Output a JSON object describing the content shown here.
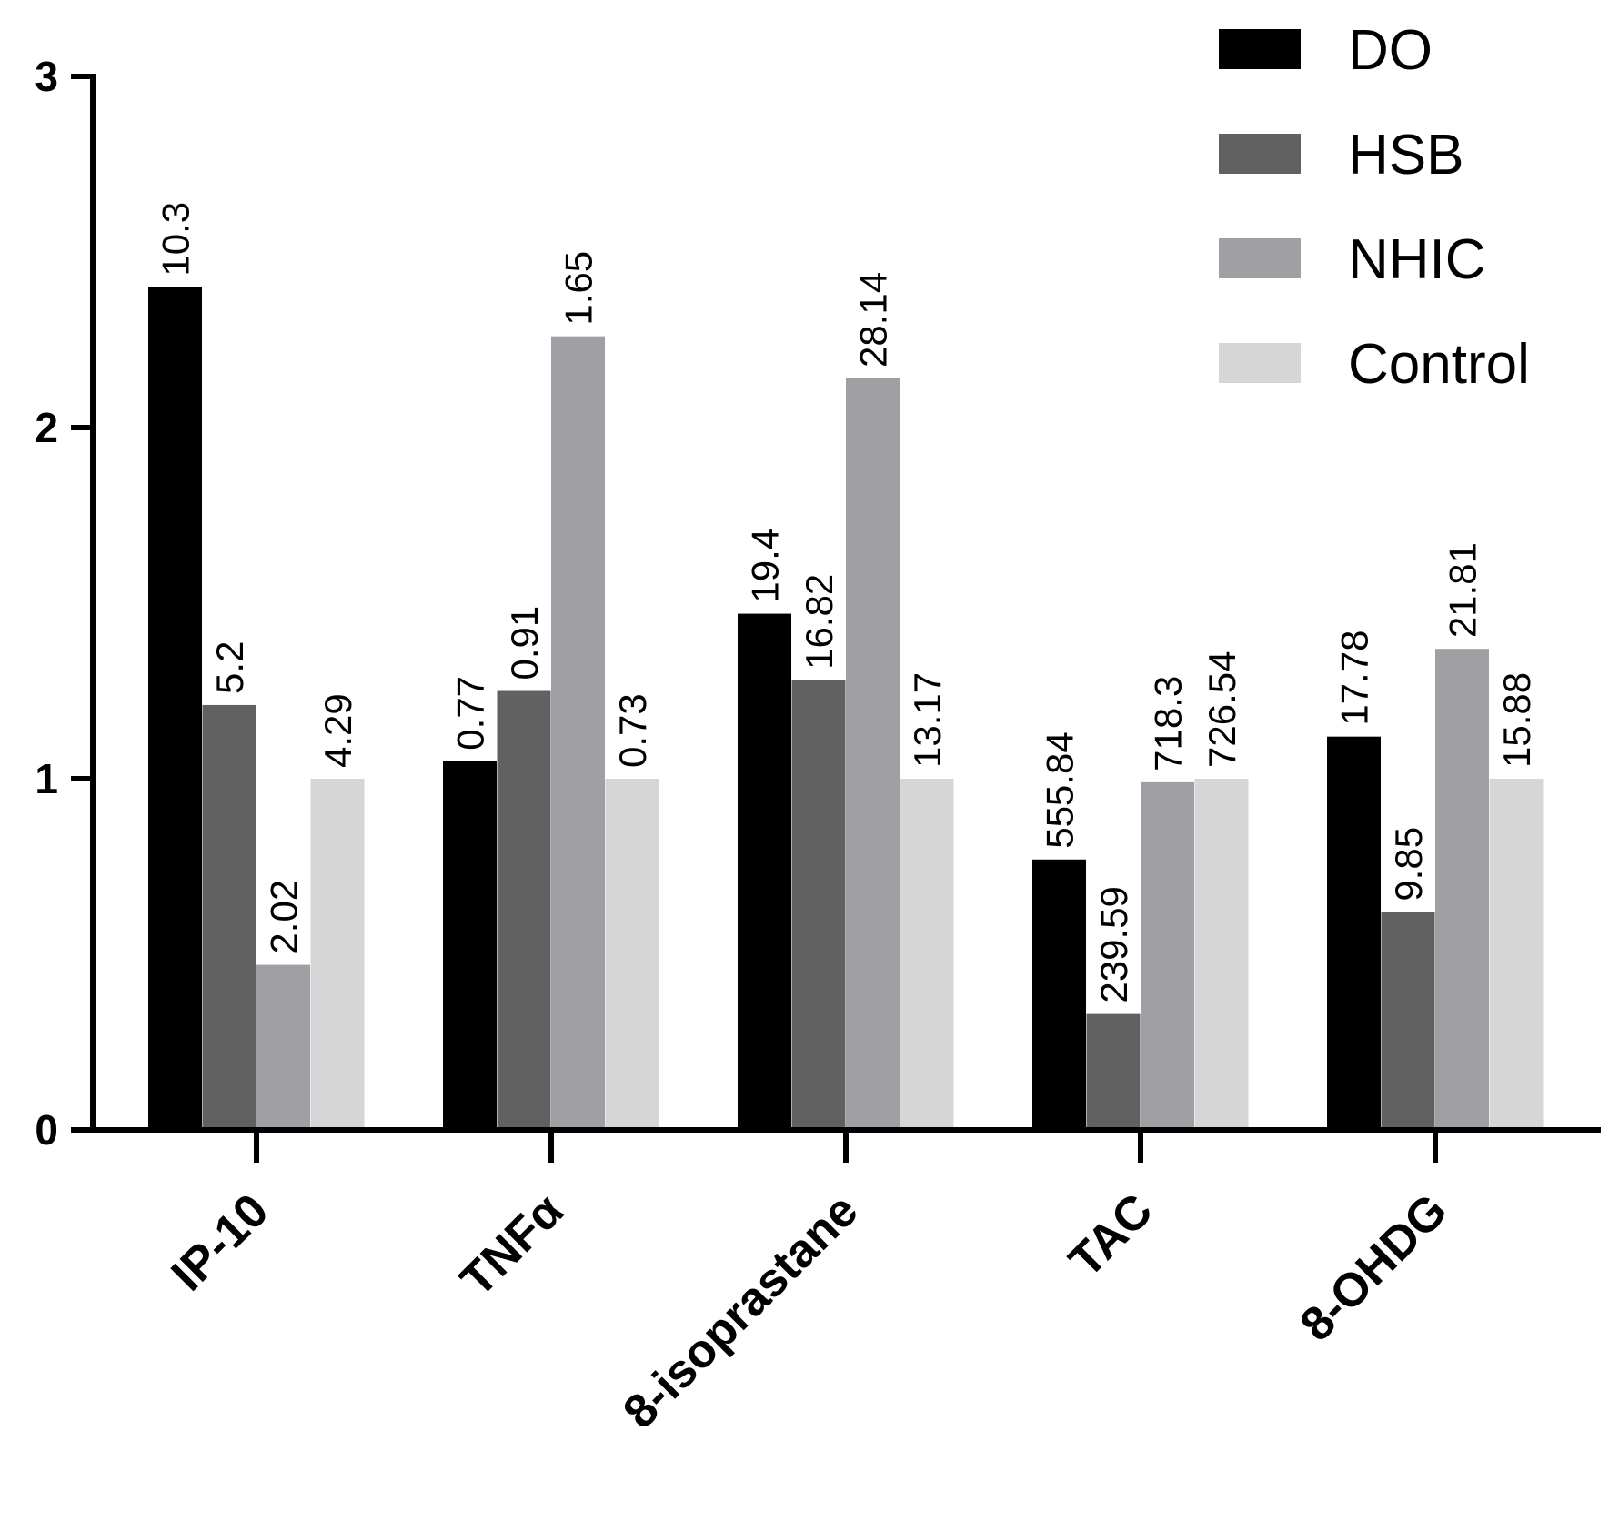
{
  "chart_data": {
    "type": "bar",
    "title": "",
    "xlabel": "",
    "ylabel": "",
    "ylim": [
      0,
      3
    ],
    "yticks": [
      0,
      1,
      2,
      3
    ],
    "grid": false,
    "legend_position": "top-right",
    "categories": [
      "IP-10",
      "TNFα",
      "8-isoprastane",
      "TAC",
      "8-OHDG"
    ],
    "series": [
      {
        "name": "DO",
        "color": "#000000",
        "values": [
          2.4,
          1.05,
          1.47,
          0.77,
          1.12
        ],
        "labels": [
          "10.3",
          "0.77",
          "19.4",
          "555.84",
          "17.78"
        ]
      },
      {
        "name": "HSB",
        "color": "#616161",
        "values": [
          1.21,
          1.25,
          1.28,
          0.33,
          0.62
        ],
        "labels": [
          "5.2",
          "0.91",
          "16.82",
          "239.59",
          "9.85"
        ]
      },
      {
        "name": "NHIC",
        "color": "#a0a0a4",
        "values": [
          0.47,
          2.26,
          2.14,
          0.99,
          1.37
        ],
        "labels": [
          "2.02",
          "1.65",
          "28.14",
          "718.3",
          "21.81"
        ]
      },
      {
        "name": "Control",
        "color": "#d6d6d6",
        "values": [
          1.0,
          1.0,
          1.0,
          1.0,
          1.0
        ],
        "labels": [
          "4.29",
          "0.73",
          "13.17",
          "726.54",
          "15.88"
        ]
      }
    ]
  }
}
